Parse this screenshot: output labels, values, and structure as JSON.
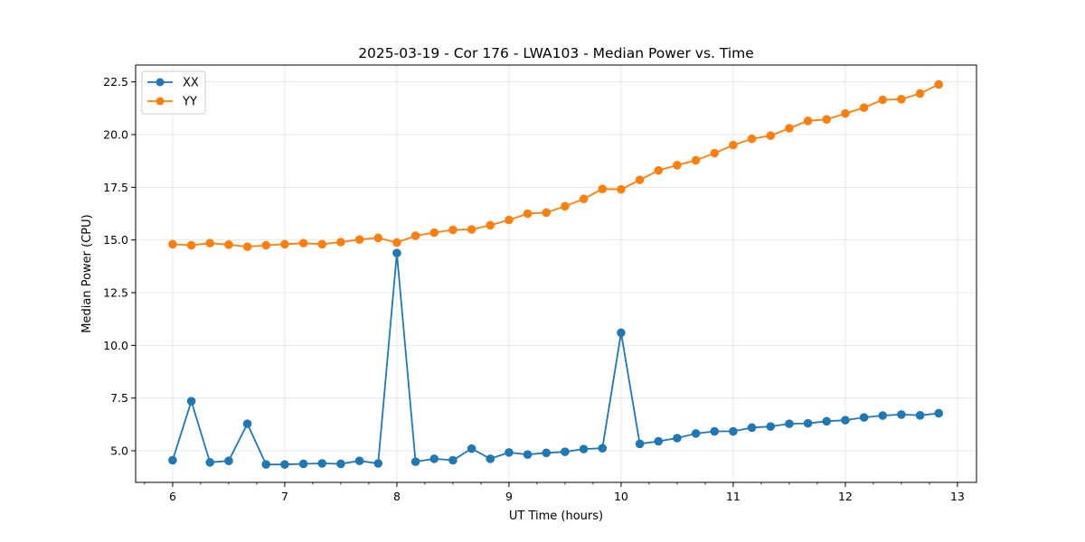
{
  "chart_data": {
    "type": "line",
    "title": "2025-03-19 - Cor 176 - LWA103 - Median Power vs. Time",
    "xlabel": "UT Time (hours)",
    "ylabel": "Median Power (CPU)",
    "xlim": [
      5.67,
      13.17
    ],
    "ylim": [
      3.5,
      23.3
    ],
    "xticks": [
      6,
      7,
      8,
      9,
      10,
      11,
      12,
      13
    ],
    "xtick_labels": [
      "6",
      "7",
      "8",
      "9",
      "10",
      "11",
      "12",
      "13"
    ],
    "xminor_step": 0.25,
    "yticks": [
      5.0,
      7.5,
      10.0,
      12.5,
      15.0,
      17.5,
      20.0,
      22.5
    ],
    "ytick_labels": [
      "5.0",
      "7.5",
      "10.0",
      "12.5",
      "15.0",
      "17.5",
      "20.0",
      "22.5"
    ],
    "grid": true,
    "legend_position": "top-left",
    "x": [
      6.0,
      6.1667,
      6.3333,
      6.5,
      6.6667,
      6.8333,
      7.0,
      7.1667,
      7.3333,
      7.5,
      7.6667,
      7.8333,
      8.0,
      8.1667,
      8.3333,
      8.5,
      8.6667,
      8.8333,
      9.0,
      9.1667,
      9.3333,
      9.5,
      9.6667,
      9.8333,
      10.0,
      10.1667,
      10.3333,
      10.5,
      10.6667,
      10.8333,
      11.0,
      11.1667,
      11.3333,
      11.5,
      11.6667,
      11.8333,
      12.0,
      12.1667,
      12.3333,
      12.5,
      12.6667,
      12.8333
    ],
    "series": [
      {
        "name": "XX",
        "color": "#1f77b4",
        "values": [
          4.55,
          7.35,
          4.45,
          4.52,
          6.28,
          4.35,
          4.35,
          4.38,
          4.4,
          4.38,
          4.52,
          4.4,
          14.38,
          4.48,
          4.62,
          4.55,
          5.1,
          4.62,
          4.92,
          4.82,
          4.9,
          4.95,
          5.08,
          5.12,
          10.6,
          5.33,
          5.45,
          5.6,
          5.82,
          5.92,
          5.92,
          6.1,
          6.15,
          6.28,
          6.3,
          6.4,
          6.45,
          6.58,
          6.67,
          6.72,
          6.68,
          6.78
        ]
      },
      {
        "name": "YY",
        "color": "#ff7f0e",
        "values": [
          14.8,
          14.75,
          14.85,
          14.78,
          14.68,
          14.75,
          14.8,
          14.85,
          14.8,
          14.9,
          15.02,
          15.1,
          14.88,
          15.2,
          15.35,
          15.48,
          15.5,
          15.7,
          15.95,
          16.25,
          16.3,
          16.6,
          16.95,
          17.42,
          17.4,
          17.85,
          18.3,
          18.55,
          18.78,
          19.12,
          19.5,
          19.8,
          19.95,
          20.3,
          20.65,
          20.72,
          21.0,
          21.28,
          21.65,
          21.68,
          21.95,
          22.38
        ]
      }
    ]
  }
}
